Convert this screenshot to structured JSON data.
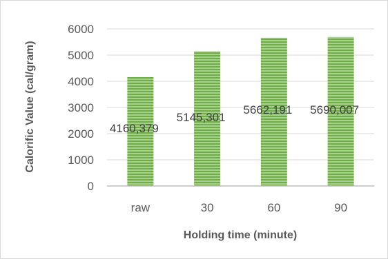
{
  "chart_data": {
    "type": "bar",
    "title": "",
    "xlabel": "Holding time (minute)",
    "ylabel": "Calorific Value (cal/gram)",
    "categories": [
      "raw",
      "30",
      "60",
      "90"
    ],
    "values": [
      4160.379,
      5145.301,
      5662.191,
      5690.007
    ],
    "value_labels": [
      "4160,379",
      "5145,301",
      "5662,191",
      "5690,007"
    ],
    "y_ticks": [
      "0",
      "1000",
      "2000",
      "3000",
      "4000",
      "5000",
      "6000"
    ],
    "ylim": [
      0,
      6000
    ],
    "grid": true,
    "legend": "none",
    "colors": {
      "bar_fill": "#a9d18e",
      "bar_stripe": "#70ad47",
      "grid": "#d9d9d9",
      "axis": "#bfbfbf"
    }
  }
}
